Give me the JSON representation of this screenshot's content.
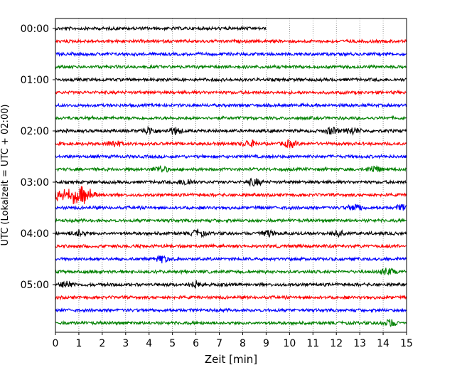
{
  "chart_data": {
    "type": "line",
    "title": "",
    "xlabel": "Zeit  [min]",
    "ylabel": "UTC (Lokalzeit = UTC + 02:00)",
    "xlim": [
      0,
      15
    ],
    "x_ticks": [
      "0",
      "1",
      "2",
      "3",
      "4",
      "5",
      "6",
      "7",
      "8",
      "9",
      "10",
      "11",
      "12",
      "13",
      "14",
      "15"
    ],
    "y_ticks": [
      "00:00",
      "01:00",
      "02:00",
      "03:00",
      "04:00",
      "05:00"
    ],
    "grid": "vertical dotted",
    "trace_interval_minutes": 15,
    "trace_colors": [
      "#000000",
      "#ff0000",
      "#0000ff",
      "#008000"
    ],
    "traces": [
      {
        "start": "00:00",
        "color": "#000000",
        "last_minute": 9.0
      },
      {
        "start": "00:15",
        "color": "#ff0000"
      },
      {
        "start": "00:30",
        "color": "#0000ff"
      },
      {
        "start": "00:45",
        "color": "#008000"
      },
      {
        "start": "01:00",
        "color": "#000000"
      },
      {
        "start": "01:15",
        "color": "#ff0000"
      },
      {
        "start": "01:30",
        "color": "#0000ff"
      },
      {
        "start": "01:45",
        "color": "#008000"
      },
      {
        "start": "02:00",
        "color": "#000000",
        "bursts_min": [
          4.0,
          5.1,
          11.8,
          12.7
        ]
      },
      {
        "start": "02:15",
        "color": "#ff0000",
        "bursts_min": [
          2.5,
          8.3,
          10.0
        ]
      },
      {
        "start": "02:30",
        "color": "#0000ff"
      },
      {
        "start": "02:45",
        "color": "#008000",
        "bursts_min": [
          4.5,
          13.6
        ]
      },
      {
        "start": "03:00",
        "color": "#000000",
        "bursts_min": [
          5.6,
          8.5
        ]
      },
      {
        "start": "03:15",
        "color": "#ff0000",
        "bursts_min": [
          0.5,
          1.0
        ]
      },
      {
        "start": "03:30",
        "color": "#0000ff",
        "bursts_min": [
          12.8,
          14.9
        ]
      },
      {
        "start": "03:45",
        "color": "#008000"
      },
      {
        "start": "04:00",
        "color": "#000000",
        "bursts_min": [
          1.0,
          6.1,
          9.0,
          12.0
        ]
      },
      {
        "start": "04:15",
        "color": "#ff0000"
      },
      {
        "start": "04:30",
        "color": "#0000ff",
        "bursts_min": [
          4.6
        ]
      },
      {
        "start": "04:45",
        "color": "#008000",
        "bursts_min": [
          14.2
        ]
      },
      {
        "start": "05:00",
        "color": "#000000",
        "bursts_min": [
          0.5,
          6.0
        ]
      },
      {
        "start": "05:15",
        "color": "#ff0000"
      },
      {
        "start": "05:30",
        "color": "#0000ff"
      },
      {
        "start": "05:45",
        "color": "#008000",
        "bursts_min": [
          14.3
        ]
      }
    ]
  }
}
